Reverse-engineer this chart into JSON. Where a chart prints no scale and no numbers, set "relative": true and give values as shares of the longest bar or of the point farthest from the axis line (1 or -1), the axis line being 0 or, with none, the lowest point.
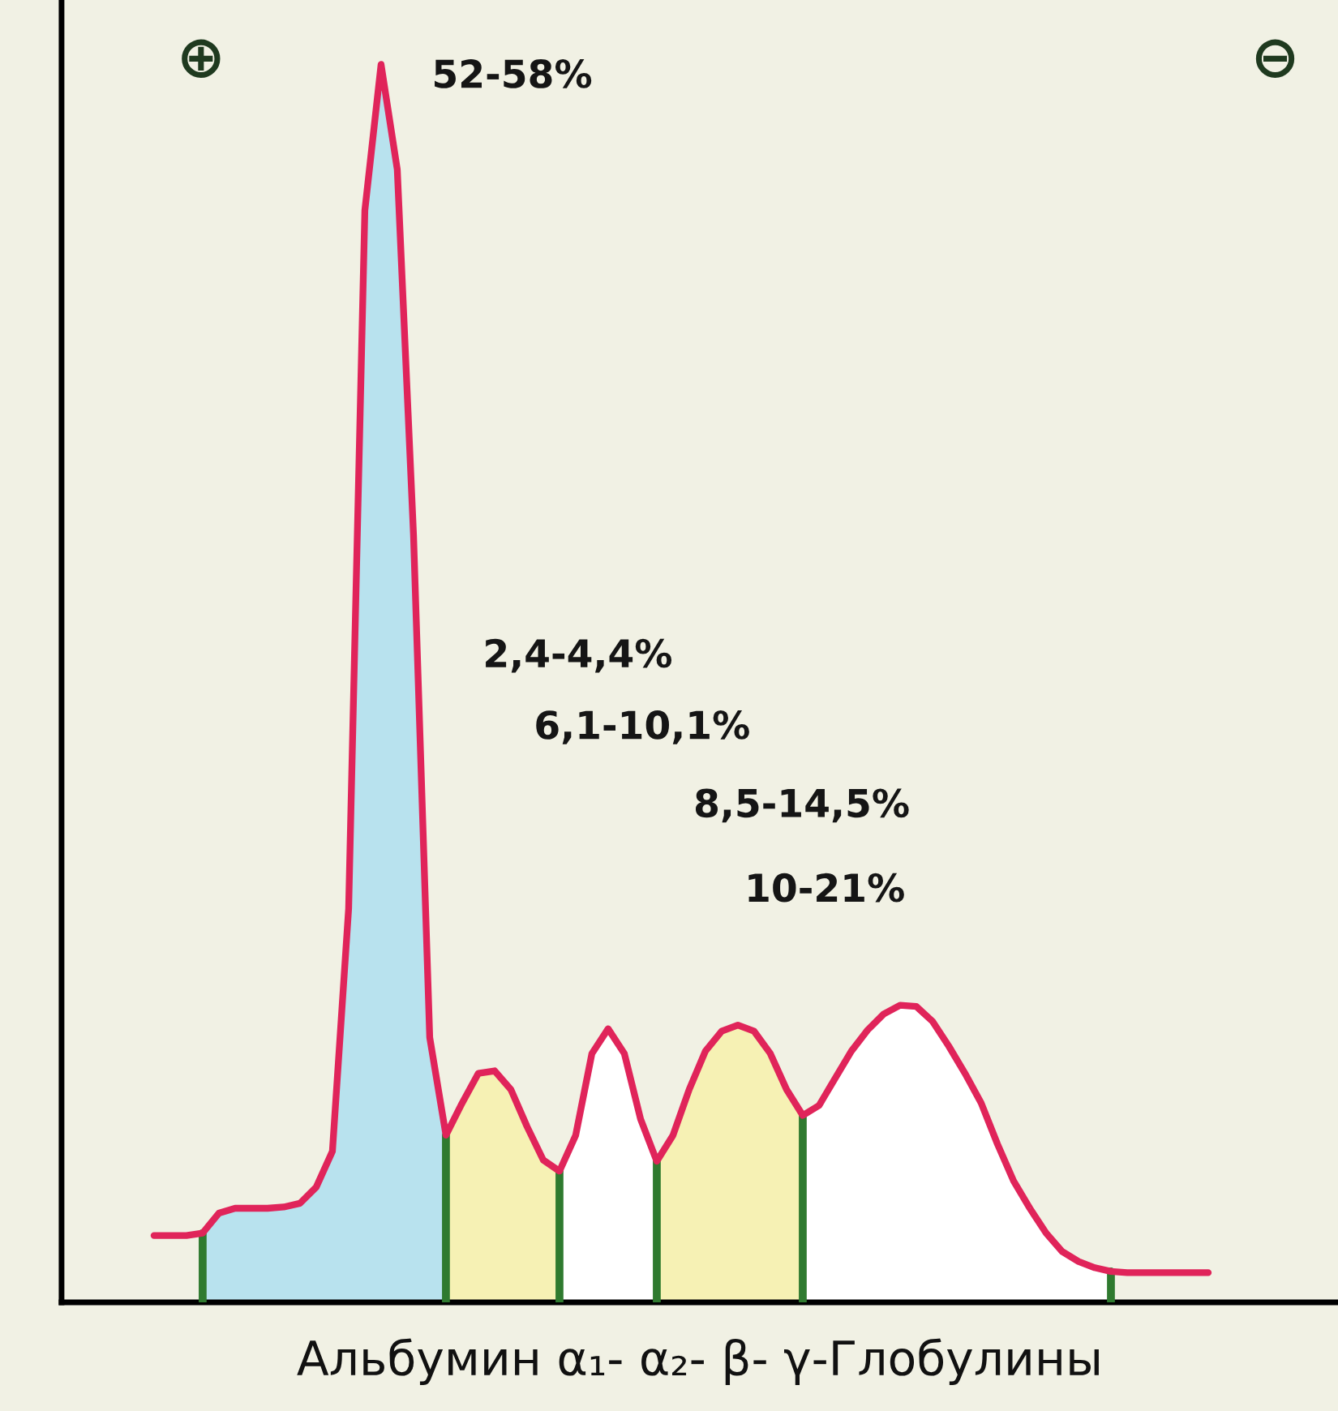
{
  "chart_data": {
    "type": "line",
    "relative": true,
    "xlabel": "Альбумин α₁- α₂- β- γ-Глобулины",
    "categories": [
      null,
      null,
      null,
      null,
      null,
      null,
      null,
      null,
      null,
      null,
      null,
      null,
      null,
      null,
      null,
      null,
      null,
      null,
      null,
      null,
      null,
      null,
      null,
      null,
      null,
      null,
      null,
      null,
      null,
      null,
      null,
      null,
      null,
      null,
      null,
      null,
      null,
      null,
      null,
      null,
      null,
      null,
      null,
      null,
      null,
      null,
      null,
      null,
      null,
      null,
      null,
      null,
      null,
      null,
      null,
      null,
      null,
      null,
      null,
      null,
      null,
      null,
      null,
      null,
      null,
      null
    ],
    "series": [
      {
        "type": "area",
        "color": "#b8e2ee",
        "values": [
          null,
          null,
          null,
          0.056,
          0.072,
          0.076,
          0.076,
          0.076,
          0.077,
          0.08,
          0.093,
          0.122,
          0.318,
          0.882,
          1.0,
          0.915,
          0.62,
          0.214,
          0.135,
          null,
          null,
          null,
          null,
          null,
          null,
          null,
          null,
          null,
          null,
          null,
          null,
          null,
          null,
          null,
          null,
          null,
          null,
          null,
          null,
          null,
          null,
          null,
          null,
          null,
          null,
          null,
          null,
          null,
          null,
          null,
          null,
          null,
          null,
          null,
          null,
          null,
          null,
          null,
          null,
          null,
          null,
          null,
          null,
          null,
          null,
          null
        ]
      },
      {
        "type": "area",
        "color": "#f6f1b4",
        "values": [
          null,
          null,
          null,
          null,
          null,
          null,
          null,
          null,
          null,
          null,
          null,
          null,
          null,
          null,
          null,
          null,
          null,
          null,
          0.135,
          0.161,
          0.185,
          0.187,
          0.172,
          0.142,
          0.115,
          0.106,
          null,
          null,
          null,
          null,
          null,
          null,
          null,
          null,
          null,
          null,
          null,
          null,
          null,
          null,
          null,
          null,
          null,
          null,
          null,
          null,
          null,
          null,
          null,
          null,
          null,
          null,
          null,
          null,
          null,
          null,
          null,
          null,
          null,
          null,
          null,
          null,
          null,
          null,
          null,
          null
        ]
      },
      {
        "type": "area",
        "color": "#f6f1b4",
        "values": [
          null,
          null,
          null,
          null,
          null,
          null,
          null,
          null,
          null,
          null,
          null,
          null,
          null,
          null,
          null,
          null,
          null,
          null,
          null,
          null,
          null,
          null,
          null,
          null,
          null,
          null,
          null,
          null,
          null,
          null,
          null,
          0.114,
          0.135,
          0.172,
          0.203,
          0.219,
          0.224,
          0.219,
          0.201,
          0.172,
          0.151,
          null,
          null,
          null,
          null,
          null,
          null,
          null,
          null,
          null,
          null,
          null,
          null,
          null,
          null,
          null,
          null,
          null,
          null,
          null,
          null,
          null,
          null,
          null,
          null,
          null
        ]
      },
      {
        "type": "area",
        "color": "#ffffff",
        "values": [
          null,
          null,
          null,
          null,
          null,
          null,
          null,
          null,
          null,
          null,
          null,
          null,
          null,
          null,
          null,
          null,
          null,
          null,
          null,
          null,
          null,
          null,
          null,
          null,
          null,
          0.106,
          0.135,
          0.201,
          0.221,
          0.201,
          0.148,
          0.114,
          null,
          null,
          null,
          null,
          null,
          null,
          null,
          null,
          null,
          null,
          null,
          null,
          null,
          null,
          null,
          null,
          null,
          null,
          null,
          null,
          null,
          null,
          null,
          null,
          null,
          null,
          null,
          null,
          null,
          null,
          null,
          null,
          null,
          null
        ]
      },
      {
        "type": "area",
        "color": "#ffffff",
        "values": [
          null,
          null,
          null,
          null,
          null,
          null,
          null,
          null,
          null,
          null,
          null,
          null,
          null,
          null,
          null,
          null,
          null,
          null,
          null,
          null,
          null,
          null,
          null,
          null,
          null,
          null,
          null,
          null,
          null,
          null,
          null,
          null,
          null,
          null,
          null,
          null,
          null,
          null,
          null,
          null,
          0.151,
          0.159,
          0.181,
          0.203,
          0.22,
          0.233,
          0.24,
          0.239,
          0.227,
          0.207,
          0.185,
          0.161,
          0.128,
          0.098,
          0.076,
          0.056,
          0.041,
          0.033,
          0.028,
          0.025,
          null,
          null,
          null,
          null,
          null,
          null
        ]
      },
      {
        "color": "#e0245a",
        "values": [
          0.054,
          0.054,
          0.054,
          0.056,
          0.072,
          0.076,
          0.076,
          0.076,
          0.077,
          0.08,
          0.093,
          0.122,
          0.318,
          0.882,
          1.0,
          0.915,
          0.62,
          0.214,
          0.135,
          0.161,
          0.185,
          0.187,
          0.172,
          0.142,
          0.115,
          0.106,
          0.135,
          0.201,
          0.221,
          0.201,
          0.148,
          0.114,
          0.135,
          0.172,
          0.203,
          0.219,
          0.224,
          0.219,
          0.201,
          0.172,
          0.151,
          0.159,
          0.181,
          0.203,
          0.22,
          0.233,
          0.24,
          0.239,
          0.227,
          0.207,
          0.185,
          0.161,
          0.128,
          0.098,
          0.076,
          0.056,
          0.041,
          0.033,
          0.028,
          0.025,
          0.024,
          0.024,
          0.024,
          0.024,
          0.024,
          0.024
        ]
      }
    ],
    "annotations": [
      "⊕",
      "⊖",
      "52-58%",
      "2,4-4,4%",
      "6,1-10,1%",
      "8,5-14,5%",
      "10-21%"
    ]
  }
}
